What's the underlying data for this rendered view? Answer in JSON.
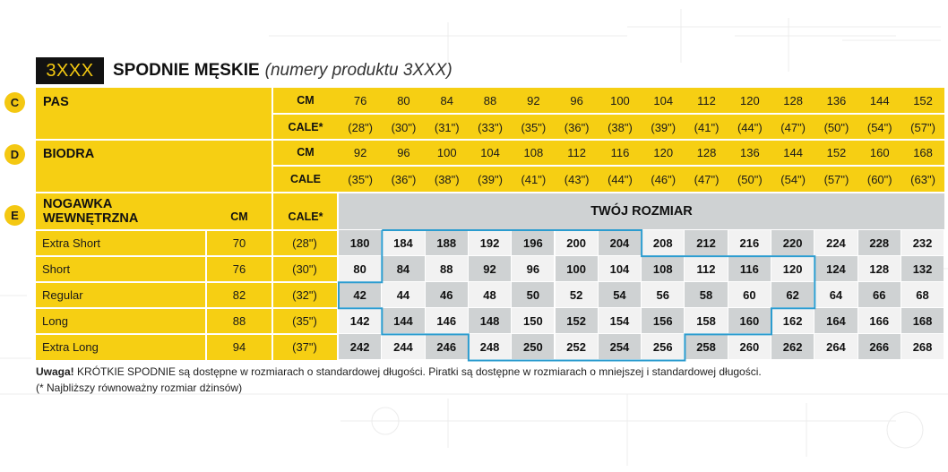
{
  "header": {
    "code": "3XXX",
    "title": "SPODNIE MĘSKIE",
    "subtitle": "(numery produktu 3XXX)"
  },
  "sections": {
    "pas": {
      "letter": "C",
      "label": "PAS",
      "unit_cm": "CM",
      "unit_cale": "CALE*",
      "cm": [
        "76",
        "80",
        "84",
        "88",
        "92",
        "96",
        "100",
        "104",
        "112",
        "120",
        "128",
        "136",
        "144",
        "152"
      ],
      "cale": [
        "(28\")",
        "(30\")",
        "(31\")",
        "(33\")",
        "(35\")",
        "(36\")",
        "(38\")",
        "(39\")",
        "(41\")",
        "(44\")",
        "(47\")",
        "(50\")",
        "(54\")",
        "(57\")"
      ]
    },
    "biodra": {
      "letter": "D",
      "label": "BIODRA",
      "unit_cm": "CM",
      "unit_cale": "CALE",
      "cm": [
        "92",
        "96",
        "100",
        "104",
        "108",
        "112",
        "116",
        "120",
        "128",
        "136",
        "144",
        "152",
        "160",
        "168"
      ],
      "cale": [
        "(35\")",
        "(36\")",
        "(38\")",
        "(39\")",
        "(41\")",
        "(43\")",
        "(44\")",
        "(46\")",
        "(47\")",
        "(50\")",
        "(54\")",
        "(57\")",
        "(60\")",
        "(63\")"
      ]
    },
    "nogawka": {
      "letter": "E",
      "label_line1": "NOGAWKA",
      "label_line2": "WEWNĘTRZNA",
      "unit_cm": "CM",
      "unit_cale": "CALE*",
      "size_header": "TWÓJ ROZMIAR",
      "rows": [
        {
          "name": "Extra Short",
          "cm": "70",
          "cale": "(28\")",
          "sizes": [
            "180",
            "184",
            "188",
            "192",
            "196",
            "200",
            "204",
            "208",
            "212",
            "216",
            "220",
            "224",
            "228",
            "232"
          ]
        },
        {
          "name": "Short",
          "cm": "76",
          "cale": "(30\")",
          "sizes": [
            "80",
            "84",
            "88",
            "92",
            "96",
            "100",
            "104",
            "108",
            "112",
            "116",
            "120",
            "124",
            "128",
            "132"
          ]
        },
        {
          "name": "Regular",
          "cm": "82",
          "cale": "(32\")",
          "sizes": [
            "42",
            "44",
            "46",
            "48",
            "50",
            "52",
            "54",
            "56",
            "58",
            "60",
            "62",
            "64",
            "66",
            "68"
          ]
        },
        {
          "name": "Long",
          "cm": "88",
          "cale": "(35\")",
          "sizes": [
            "142",
            "144",
            "146",
            "148",
            "150",
            "152",
            "154",
            "156",
            "158",
            "160",
            "162",
            "164",
            "166",
            "168"
          ]
        },
        {
          "name": "Extra Long",
          "cm": "94",
          "cale": "(37\")",
          "sizes": [
            "242",
            "244",
            "246",
            "248",
            "250",
            "252",
            "254",
            "256",
            "258",
            "260",
            "262",
            "264",
            "266",
            "268"
          ]
        }
      ]
    }
  },
  "notes": {
    "warning_label": "Uwaga!",
    "warning_text": "KRÓTKIE SPODNIE są dostępne w rozmiarach o standardowej długości. Piratki są dostępne w rozmiarach o mniejszej i standardowej długości.",
    "footnote": "(* Najbliższy równoważny rozmiar dżinsów)"
  },
  "colors": {
    "yellow": "#f6cf13",
    "dark_grey_cell": "#cfd2d3",
    "light_cell": "#f2f2f2",
    "outline": "#2b9ccf",
    "code_bg": "#121212"
  }
}
